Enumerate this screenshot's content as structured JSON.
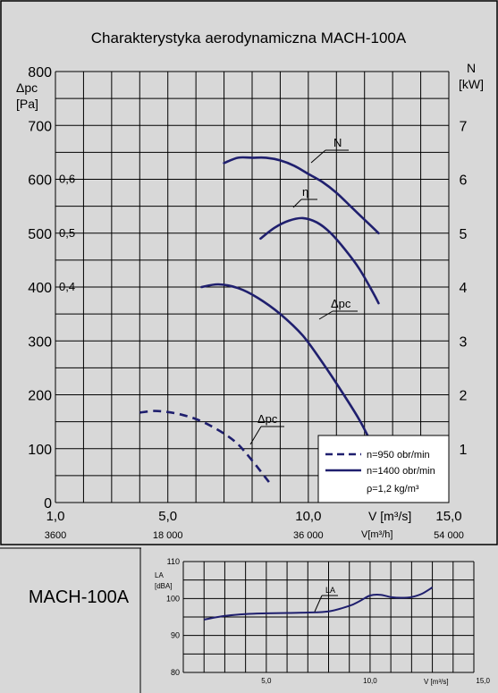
{
  "main_title": "Charakterystyka aerodynamiczna MACH-100A",
  "bottom_title": "MACH-100A",
  "colors": {
    "background": "#d8d8d8",
    "curve": "#1f1f6e",
    "grid": "#000000"
  },
  "chart_data": [
    {
      "type": "line",
      "title": "Charakterystyka aerodynamiczna MACH-100A",
      "x_axis": {
        "label": "V [m³/s]",
        "secondary_label": "V[m³/h]",
        "range": [
          1.0,
          15.0
        ],
        "tick_labels": [
          "1,0",
          "5,0",
          "10,0",
          "15,0"
        ],
        "tick_values": [
          1,
          5,
          10,
          15
        ],
        "secondary_tick_labels": [
          "3600",
          "18 000",
          "36 000",
          "54 000"
        ]
      },
      "y_axis_left": {
        "label_line1": "Δpc",
        "label_line2": "[Pa]",
        "range": [
          0,
          800
        ],
        "tick_labels": [
          "0",
          "100",
          "200",
          "300",
          "400",
          "500",
          "600",
          "700",
          "800"
        ],
        "tick_values": [
          0,
          100,
          200,
          300,
          400,
          500,
          600,
          700,
          800
        ]
      },
      "y_axis_right": {
        "label_line1": "N",
        "label_line2": "[kW]",
        "range": [
          0,
          8
        ],
        "tick_labels": [
          "1",
          "2",
          "3",
          "4",
          "5",
          "6",
          "7"
        ],
        "tick_values": [
          1,
          2,
          3,
          4,
          5,
          6,
          7
        ]
      },
      "eta_labels": {
        "labels": [
          "0,6",
          "0,5",
          "0,4"
        ],
        "values": [
          0.6,
          0.5,
          0.4
        ]
      },
      "grid": true,
      "legend": {
        "placement": "bottom-right",
        "items": [
          {
            "label": "n=950 obr/min",
            "style": "dashed"
          },
          {
            "label": "n=1400 obr/min",
            "style": "solid"
          }
        ],
        "note": "ρ=1,2 kg/m³"
      },
      "series": [
        {
          "name": "N",
          "axis": "right",
          "style": "solid",
          "x": [
            7.0,
            7.5,
            8.0,
            8.5,
            9.0,
            9.5,
            10.0,
            10.5,
            11.0,
            11.5,
            12.0,
            12.5
          ],
          "y": [
            6.3,
            6.4,
            6.4,
            6.4,
            6.35,
            6.25,
            6.1,
            5.95,
            5.75,
            5.5,
            5.25,
            5.0
          ]
        },
        {
          "name": "η",
          "axis": "eta",
          "style": "solid",
          "x": [
            8.3,
            8.8,
            9.3,
            9.8,
            10.3,
            10.8,
            11.3,
            11.8,
            12.3,
            12.5
          ],
          "y": [
            0.49,
            0.51,
            0.523,
            0.528,
            0.52,
            0.5,
            0.47,
            0.435,
            0.39,
            0.37
          ]
        },
        {
          "name": "Δpc",
          "axis": "left",
          "style": "solid",
          "rpm": "n=1400 obr/min",
          "x": [
            6.2,
            6.8,
            7.5,
            8.2,
            9.0,
            9.8,
            10.5,
            11.2,
            11.8,
            12.2
          ],
          "y": [
            400,
            405,
            398,
            380,
            350,
            310,
            260,
            205,
            155,
            115
          ]
        },
        {
          "name": "Δpc",
          "axis": "left",
          "style": "dashed",
          "rpm": "n=950 obr/min",
          "x": [
            4.0,
            4.5,
            5.0,
            5.5,
            6.0,
            6.5,
            7.0,
            7.5,
            8.0,
            8.6
          ],
          "y": [
            167,
            170,
            168,
            163,
            155,
            143,
            128,
            108,
            78,
            38
          ]
        }
      ]
    },
    {
      "type": "line",
      "title": "",
      "x_axis": {
        "label": "V [m³/s]",
        "range": [
          1.0,
          15.0
        ],
        "tick_labels": [
          "5,0",
          "10,0",
          "15,0"
        ],
        "tick_values": [
          5,
          10,
          15
        ]
      },
      "y_axis": {
        "label_line1": "LA",
        "label_line2": "[dBA]",
        "range": [
          80,
          110
        ],
        "tick_labels": [
          "80",
          "90",
          "100",
          "110"
        ],
        "tick_values": [
          80,
          90,
          100,
          110
        ]
      },
      "grid": true,
      "series": [
        {
          "name": "LA",
          "style": "solid",
          "x": [
            2.0,
            3.0,
            4.0,
            5.0,
            6.0,
            7.0,
            8.0,
            9.0,
            9.5,
            10.0,
            10.5,
            11.0,
            11.5,
            12.0,
            12.5,
            13.0
          ],
          "y": [
            94.3,
            95.3,
            95.8,
            96.0,
            96.1,
            96.2,
            96.5,
            98.0,
            99.3,
            100.8,
            101.0,
            100.4,
            100.2,
            100.4,
            101.3,
            103.0
          ]
        }
      ]
    }
  ]
}
